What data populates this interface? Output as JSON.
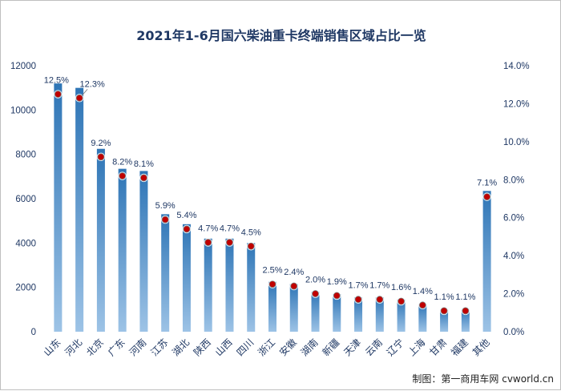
{
  "title": "2021年1-6月国六柴油重卡终端销售区域占比一览",
  "credit": "制图：第一商用车网 cvworld.cn",
  "colors": {
    "bar_top": "#2e75b6",
    "bar_bottom": "#9dc3e6",
    "marker": "#c00000",
    "text": "#1f3864"
  },
  "chart_data": {
    "type": "bar",
    "categories": [
      "山东",
      "河北",
      "北京",
      "广东",
      "河南",
      "江苏",
      "湖北",
      "陕西",
      "山西",
      "四川",
      "浙江",
      "安徽",
      "湖南",
      "新疆",
      "天津",
      "云南",
      "辽宁",
      "上海",
      "甘肃",
      "福建",
      "其他"
    ],
    "series": [
      {
        "axis": "left",
        "values": [
          11200,
          11000,
          8250,
          7350,
          7250,
          5300,
          4850,
          4200,
          4200,
          4000,
          2250,
          2150,
          1800,
          1700,
          1550,
          1550,
          1450,
          1250,
          1000,
          1000,
          6350
        ]
      },
      {
        "axis": "right",
        "values": [
          12.5,
          12.3,
          9.2,
          8.2,
          8.1,
          5.9,
          5.4,
          4.7,
          4.7,
          4.5,
          2.5,
          2.4,
          2.0,
          1.9,
          1.7,
          1.7,
          1.6,
          1.4,
          1.1,
          1.1,
          7.1
        ],
        "labels": [
          "12.5%",
          "12.3%",
          "9.2%",
          "8.2%",
          "8.1%",
          "5.9%",
          "5.4%",
          "4.7%",
          "4.7%",
          "4.5%",
          "2.5%",
          "2.4%",
          "2.0%",
          "1.9%",
          "1.7%",
          "1.7%",
          "1.6%",
          "1.4%",
          "1.1%",
          "1.1%",
          "7.1%"
        ]
      }
    ],
    "y_left": {
      "ylim": [
        0,
        12000
      ],
      "ticks": [
        "0",
        "2000",
        "4000",
        "6000",
        "8000",
        "10000",
        "12000"
      ]
    },
    "y_right": {
      "ylim": [
        0,
        14
      ],
      "ticks": [
        "0.0%",
        "2.0%",
        "4.0%",
        "6.0%",
        "8.0%",
        "10.0%",
        "12.0%",
        "14.0%"
      ]
    },
    "grid": false,
    "legend": "none"
  }
}
